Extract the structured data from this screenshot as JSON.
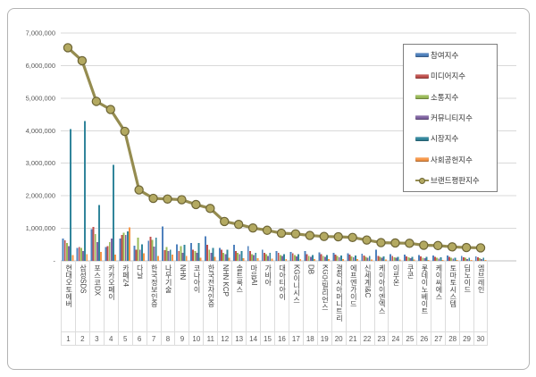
{
  "frame": {
    "background": "#ffffff",
    "border_color": "#b3b3b3"
  },
  "chart_data": {
    "type": "bar",
    "subtype": "grouped bars with overlay line",
    "title": "",
    "xlabel": "",
    "ylabel": "",
    "ylim": [
      0,
      7000000
    ],
    "grid": true,
    "legend_position": "upper-right",
    "yticks": [
      {
        "value": 0,
        "label": "-"
      },
      {
        "value": 1000000,
        "label": "1,000,000"
      },
      {
        "value": 2000000,
        "label": "2,000,000"
      },
      {
        "value": 3000000,
        "label": "3,000,000"
      },
      {
        "value": 4000000,
        "label": "4,000,000"
      },
      {
        "value": 5000000,
        "label": "5,000,000"
      },
      {
        "value": 6000000,
        "label": "6,000,000"
      },
      {
        "value": 7000000,
        "label": "7,000,000"
      }
    ],
    "categories": [
      "현대오토에버",
      "삼성SDS",
      "포스코DX",
      "카카오페이",
      "카페24",
      "다날",
      "한국정보인증",
      "나무기술",
      "NHN",
      "코나아이",
      "한국전자인증",
      "NHN KCP",
      "솔트룩스",
      "마음AI",
      "가비아",
      "대아티아이",
      "KG이니시스",
      "DB",
      "KG모빌리언스",
      "갤럭시아머니트리",
      "에프엔가이드",
      "신세계I&C",
      "케이아이엔엑스",
      "이루온",
      "쿠콘",
      "롯데이노베이트",
      "케이씨에스",
      "토마토시스템",
      "딥노이드",
      "엠브레인"
    ],
    "category_numbers": [
      "1",
      "2",
      "3",
      "4",
      "5",
      "6",
      "7",
      "8",
      "9",
      "10",
      "11",
      "12",
      "13",
      "14",
      "15",
      "16",
      "17",
      "18",
      "19",
      "20",
      "21",
      "22",
      "23",
      "24",
      "25",
      "26",
      "27",
      "28",
      "29",
      "30"
    ],
    "series": [
      {
        "name": "참여지수",
        "color": "#4F81BD",
        "values": [
          690000,
          400000,
          980000,
          420000,
          690000,
          470000,
          620000,
          1060000,
          510000,
          550000,
          760000,
          400000,
          500000,
          450000,
          350000,
          300000,
          280000,
          300000,
          260000,
          250000,
          240000,
          220000,
          350000,
          200000,
          190000,
          180000,
          170000,
          160000,
          150000,
          140000
        ]
      },
      {
        "name": "미디어지수",
        "color": "#C0504D",
        "values": [
          630000,
          430000,
          1050000,
          450000,
          790000,
          350000,
          740000,
          330000,
          300000,
          350000,
          500000,
          350000,
          300000,
          300000,
          250000,
          250000,
          230000,
          200000,
          200000,
          190000,
          190000,
          170000,
          150000,
          150000,
          140000,
          140000,
          130000,
          120000,
          110000,
          110000
        ]
      },
      {
        "name": "소통지수",
        "color": "#9BBB59",
        "values": [
          550000,
          400000,
          830000,
          580000,
          860000,
          710000,
          640000,
          420000,
          450000,
          300000,
          350000,
          250000,
          250000,
          200000,
          200000,
          180000,
          180000,
          150000,
          150000,
          150000,
          140000,
          130000,
          120000,
          110000,
          110000,
          100000,
          100000,
          90000,
          90000,
          80000
        ]
      },
      {
        "name": "커뮤니티지수",
        "color": "#8064A2",
        "values": [
          450000,
          300000,
          580000,
          690000,
          800000,
          350000,
          440000,
          300000,
          250000,
          250000,
          250000,
          200000,
          200000,
          180000,
          150000,
          150000,
          140000,
          120000,
          120000,
          110000,
          110000,
          100000,
          90000,
          90000,
          80000,
          80000,
          70000,
          70000,
          60000,
          60000
        ]
      },
      {
        "name": "시장지수",
        "color": "#31859B",
        "values": [
          4050000,
          4300000,
          1720000,
          2950000,
          900000,
          510000,
          720000,
          350000,
          500000,
          550000,
          400000,
          350000,
          300000,
          250000,
          250000,
          200000,
          200000,
          180000,
          180000,
          170000,
          160000,
          150000,
          140000,
          130000,
          130000,
          120000,
          110000,
          100000,
          100000,
          90000
        ]
      },
      {
        "name": "사회공헌지수",
        "color": "#F79646",
        "values": [
          180000,
          200000,
          270000,
          190000,
          1030000,
          240000,
          150000,
          190000,
          150000,
          100000,
          120000,
          100000,
          80000,
          80000,
          70000,
          60000,
          60000,
          50000,
          50000,
          50000,
          50000,
          40000,
          40000,
          40000,
          40000,
          30000,
          30000,
          30000,
          30000,
          30000
        ]
      }
    ],
    "line_series": {
      "name": "브랜드평판지수",
      "color": "#958C50",
      "marker_fill": "#B3A961",
      "marker_stroke": "#6C6435",
      "values": [
        6550000,
        6150000,
        4900000,
        4650000,
        3980000,
        2180000,
        1920000,
        1900000,
        1880000,
        1730000,
        1610000,
        1210000,
        1120000,
        1010000,
        940000,
        850000,
        830000,
        780000,
        750000,
        740000,
        720000,
        640000,
        560000,
        550000,
        540000,
        480000,
        470000,
        430000,
        410000,
        400000
      ]
    }
  }
}
